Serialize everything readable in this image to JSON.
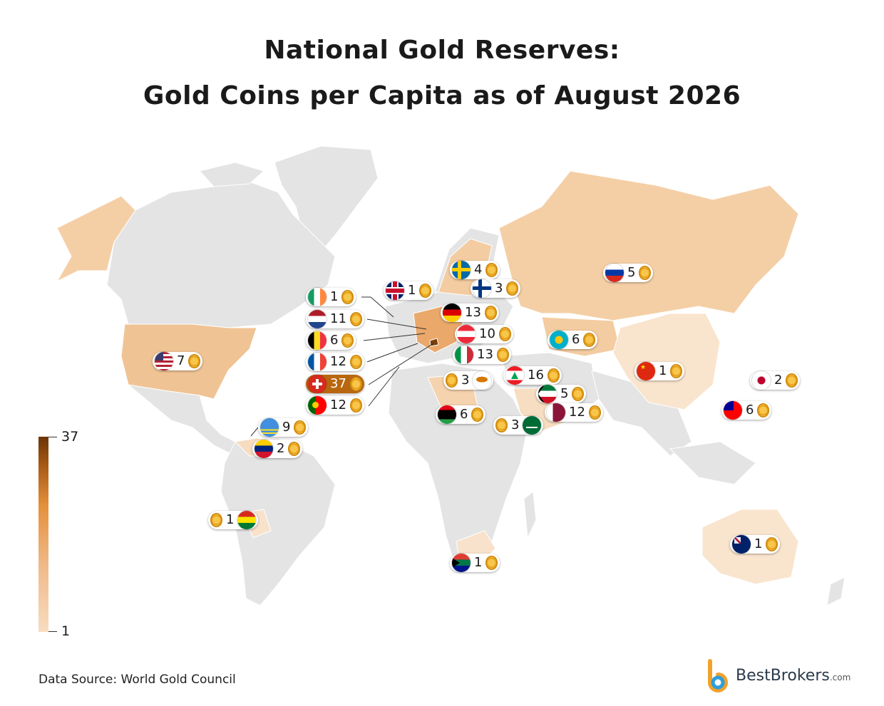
{
  "title_line1": "National Gold Reserves:",
  "title_line2": "Gold Coins per Capita as of August 2026",
  "legend": {
    "max_label": "37",
    "min_label": "1",
    "color_low": "#f8dcc0",
    "color_high": "#6b3406"
  },
  "source": "Data Source: World Gold Council",
  "logo": {
    "name": "BestBrokers",
    "suffix": ".com"
  },
  "colors": {
    "land": "#e4e4e4",
    "border": "#ffffff",
    "highlight_pill": "#b8660f",
    "coin": "#f2b531"
  },
  "countries": [
    {
      "key": "usa",
      "value": "7",
      "flag": "usa-flag",
      "shaded": true
    },
    {
      "key": "russia",
      "value": "5",
      "flag": "russia-flag",
      "shaded": true
    },
    {
      "key": "china",
      "value": "1",
      "flag": "china-flag",
      "shaded": true
    },
    {
      "key": "japan",
      "value": "2",
      "flag": "japan-flag",
      "shaded": true
    },
    {
      "key": "taiwan",
      "value": "6",
      "flag": "taiwan-flag",
      "shaded": true
    },
    {
      "key": "kazakhstan",
      "value": "6",
      "flag": "kazakhstan-flag",
      "shaded": true
    },
    {
      "key": "australia",
      "value": "1",
      "flag": "australia-flag",
      "shaded": true
    },
    {
      "key": "south-africa",
      "value": "1",
      "flag": "south-africa-flag",
      "shaded": true
    },
    {
      "key": "bolivia",
      "value": "1",
      "flag": "bolivia-flag",
      "shaded": true
    },
    {
      "key": "venezuela",
      "value": "2",
      "flag": "venezuela-flag",
      "shaded": true
    },
    {
      "key": "aruba",
      "value": "9",
      "flag": "aruba-flag",
      "shaded": true
    },
    {
      "key": "uk",
      "value": "1",
      "flag": "uk-flag",
      "shaded": true
    },
    {
      "key": "sweden",
      "value": "4",
      "flag": "sweden-flag",
      "shaded": true
    },
    {
      "key": "finland",
      "value": "3",
      "flag": "finland-flag",
      "shaded": true
    },
    {
      "key": "germany",
      "value": "13",
      "flag": "germany-flag",
      "shaded": true
    },
    {
      "key": "austria",
      "value": "10",
      "flag": "austria-flag",
      "shaded": true
    },
    {
      "key": "italy",
      "value": "13",
      "flag": "italy-flag",
      "shaded": true
    },
    {
      "key": "ireland",
      "value": "1",
      "flag": "ireland-flag",
      "shaded": true
    },
    {
      "key": "netherlands",
      "value": "11",
      "flag": "netherlands-flag",
      "shaded": true
    },
    {
      "key": "belgium",
      "value": "6",
      "flag": "belgium-flag",
      "shaded": true
    },
    {
      "key": "france",
      "value": "12",
      "flag": "france-flag",
      "shaded": true
    },
    {
      "key": "switzerland",
      "value": "37",
      "flag": "switzerland-flag",
      "shaded": true
    },
    {
      "key": "portugal",
      "value": "12",
      "flag": "portugal-flag",
      "shaded": true
    },
    {
      "key": "cyprus",
      "value": "3",
      "flag": "cyprus-flag",
      "shaded": true
    },
    {
      "key": "lebanon",
      "value": "16",
      "flag": "lebanon-flag",
      "shaded": true
    },
    {
      "key": "kuwait",
      "value": "5",
      "flag": "kuwait-flag",
      "shaded": true
    },
    {
      "key": "qatar",
      "value": "12",
      "flag": "qatar-flag",
      "shaded": true
    },
    {
      "key": "saudi-arabia",
      "value": "3",
      "flag": "saudi-arabia-flag",
      "shaded": true
    },
    {
      "key": "libya",
      "value": "6",
      "flag": "libya-flag",
      "shaded": true
    }
  ]
}
